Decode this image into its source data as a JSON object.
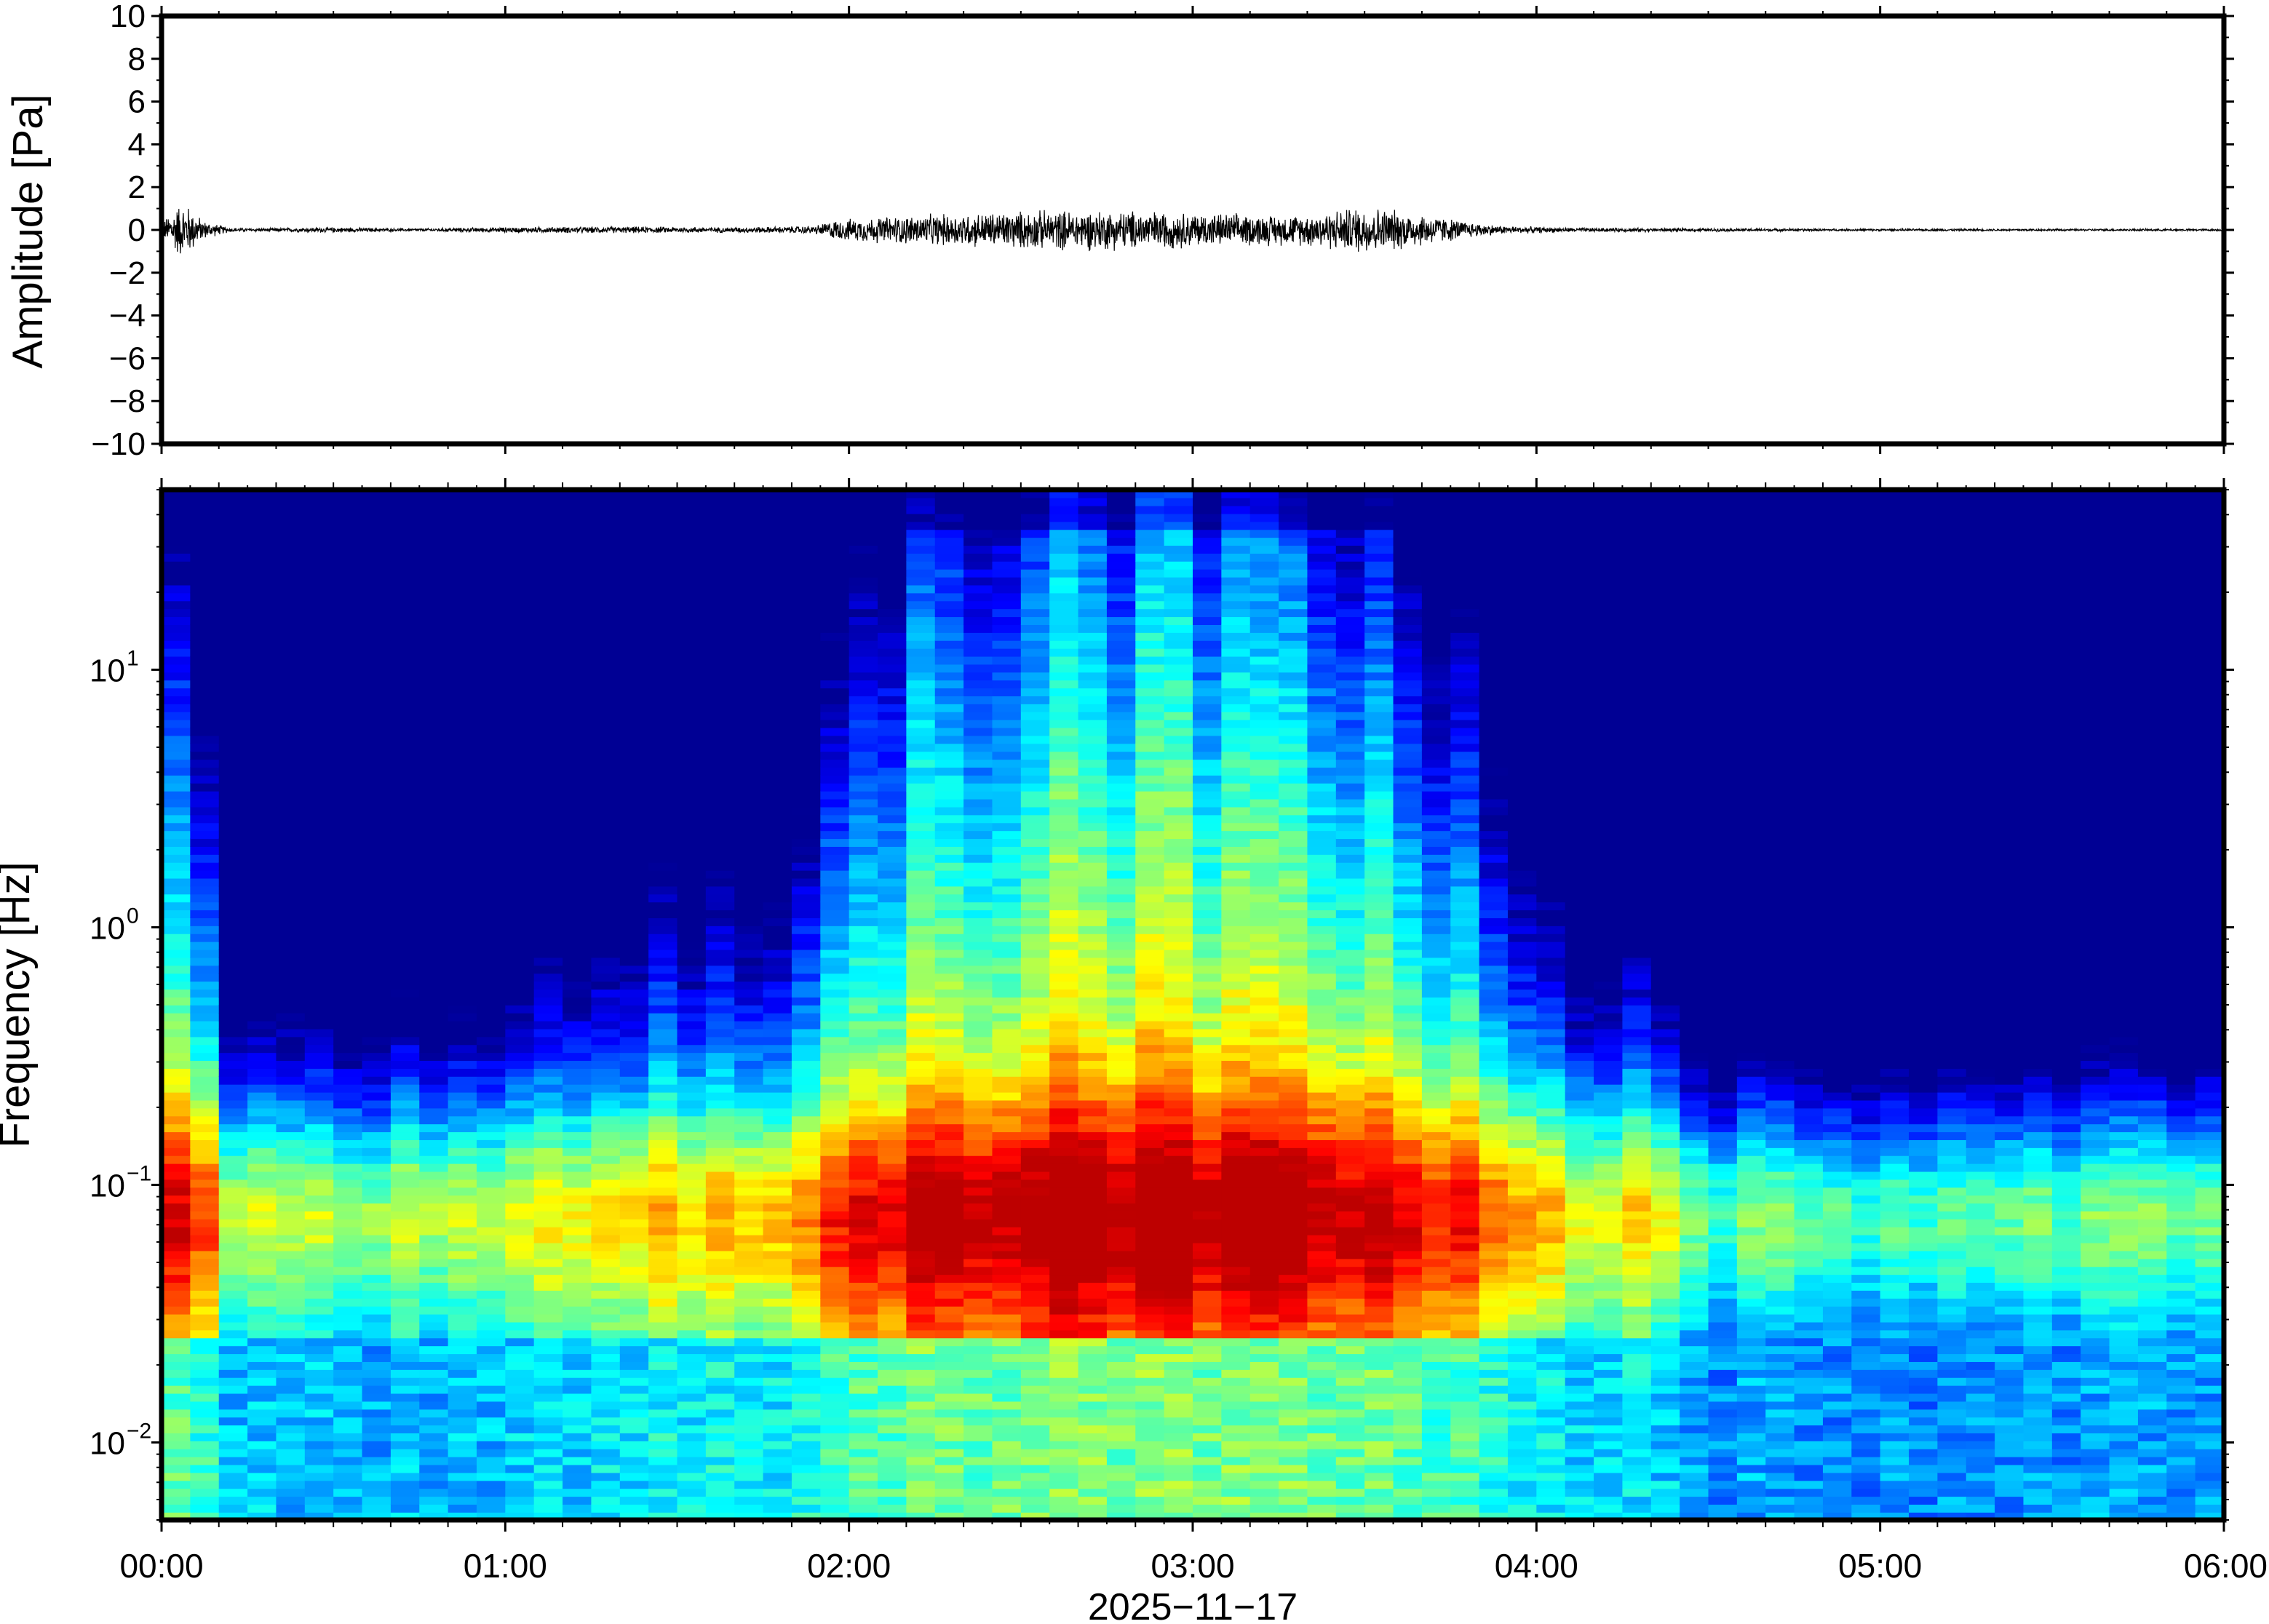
{
  "chart_data": [
    {
      "type": "line",
      "ylabel": "Amplitude [Pa]",
      "ylim": [
        -10,
        10
      ],
      "yticks": [
        10,
        8,
        6,
        4,
        2,
        0,
        -2,
        -4,
        -6,
        -8,
        -10
      ],
      "ytick_labels": [
        "10",
        "8",
        "6",
        "4",
        "2",
        "0",
        "−2",
        "−4",
        "−6",
        "−8",
        "−10"
      ],
      "xlim": [
        "00:00",
        "06:00"
      ],
      "grid": false,
      "series": [
        {
          "color": "#000000",
          "envelope": {
            "hours": [
              0.0,
              0.05,
              0.08,
              0.12,
              0.2,
              0.3,
              0.5,
              0.7,
              1.0,
              1.2,
              1.4,
              1.6,
              1.8,
              1.9,
              1.95,
              2.1,
              2.3,
              2.5,
              2.7,
              2.9,
              3.1,
              3.3,
              3.45,
              3.5,
              3.7,
              3.8,
              3.9,
              4.1,
              4.5,
              5.0,
              5.5,
              6.0
            ],
            "pa": [
              0.25,
              1.0,
              0.9,
              0.35,
              0.08,
              0.06,
              0.1,
              0.05,
              0.1,
              0.12,
              0.12,
              0.1,
              0.12,
              0.15,
              0.35,
              0.5,
              0.6,
              0.7,
              0.75,
              0.7,
              0.6,
              0.55,
              0.8,
              0.9,
              0.55,
              0.3,
              0.15,
              0.08,
              0.06,
              0.04,
              0.04,
              0.04
            ]
          }
        }
      ]
    },
    {
      "type": "heatmap",
      "ylabel": "Frequency [Hz]",
      "yscale": "log",
      "ylim": [
        0.005,
        50
      ],
      "yticks": [
        0.01,
        0.1,
        1,
        10
      ],
      "ytick_labels": [
        {
          "base": "10",
          "exp": "−2"
        },
        {
          "base": "10",
          "exp": "−1"
        },
        {
          "base": "10",
          "exp": "0"
        },
        {
          "base": "10",
          "exp": "1"
        }
      ],
      "xlabel": "2025−11−17",
      "xlim": [
        "00:00",
        "06:00"
      ],
      "xticks": [
        "00:00",
        "01:00",
        "02:00",
        "03:00",
        "04:00",
        "05:00",
        "06:00"
      ],
      "colormap": "jet",
      "colors": {
        "low": "#00008f",
        "mid": "#7fff7f",
        "high": "#ff3a00"
      },
      "intensity_profile": {
        "hours": [
          0.0,
          0.12,
          0.2,
          0.4,
          0.6,
          0.8,
          1.0,
          1.2,
          1.4,
          1.6,
          1.8,
          2.0,
          2.2,
          2.5,
          2.8,
          3.1,
          3.4,
          3.6,
          3.8,
          3.9,
          4.1,
          4.3,
          4.5,
          5.0,
          5.5,
          6.0
        ],
        "relative_level": [
          0.75,
          0.7,
          0.4,
          0.3,
          0.35,
          0.3,
          0.35,
          0.45,
          0.5,
          0.5,
          0.5,
          0.72,
          0.82,
          0.88,
          0.9,
          0.88,
          0.86,
          0.8,
          0.72,
          0.55,
          0.45,
          0.42,
          0.25,
          0.22,
          0.22,
          0.28
        ]
      },
      "peak_frequency_hz": 0.08
    }
  ]
}
